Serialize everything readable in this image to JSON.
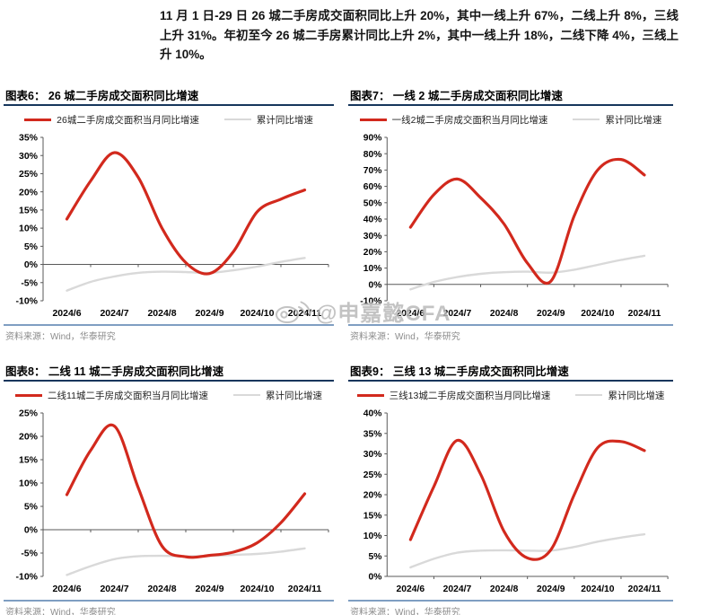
{
  "page": {
    "header_text": "11 月 1 日-29 日 26 城二手房成交面积同比上升 20%，其中一线上升 67%，二线上升 8%，三线上升 31%。年初至今 26 城二手房累计同比上升 2%，其中一线上升 18%，二线下降 4%，三线上升 10%。",
    "watermark": {
      "icon": "weibo-icon",
      "text": "@申嘉懿CFA"
    }
  },
  "colors": {
    "monthly_line": "#d2291d",
    "cumulative_line": "#d9d9d9",
    "title_underline": "#16365c",
    "source_divider": "#7f9ec2",
    "axis": "#595959",
    "tick_label": "#000000",
    "source_text": "#8c8c8c"
  },
  "chart_data": [
    {
      "id": "figure-6",
      "type": "line",
      "title": "图表6：  26 城二手房成交面积同比增速",
      "legend": [
        "26城二手房成交面积当月同比增速",
        "累计同比增速"
      ],
      "x_tick_labels": [
        "2024/6",
        "2024/7",
        "2024/8",
        "2024/9",
        "2024/10",
        "2024/11"
      ],
      "ylim": [
        -10,
        35
      ],
      "ytick_step": 5,
      "grid": false,
      "x": [
        6,
        6.5,
        7,
        7.5,
        8,
        8.5,
        9,
        9.5,
        10,
        10.5,
        11
      ],
      "series": [
        {
          "name": "26城二手房成交面积当月同比增速",
          "role": "monthly",
          "values": [
            12.5,
            23,
            30.8,
            24,
            10,
            0.5,
            -2.5,
            3.5,
            14.5,
            18,
            20.5
          ]
        },
        {
          "name": "累计同比增速",
          "role": "cumulative",
          "values": [
            -7.2,
            -4.8,
            -3.3,
            -2.3,
            -2.0,
            -2.1,
            -2.3,
            -1.6,
            -0.6,
            0.7,
            1.8
          ]
        }
      ],
      "source": "资料来源：Wind，华泰研究"
    },
    {
      "id": "figure-7",
      "type": "line",
      "title": "图表7：  一线 2 城二手房成交面积同比增速",
      "legend": [
        "一线2城二手房成交面积当月同比增速",
        "累计同比增速"
      ],
      "x_tick_labels": [
        "2024/6",
        "2024/7",
        "2024/8",
        "2024/9",
        "2024/10",
        "2024/11"
      ],
      "ylim": [
        -10,
        90
      ],
      "ytick_step": 10,
      "grid": false,
      "x": [
        6,
        6.5,
        7,
        7.5,
        8,
        8.5,
        9,
        9.5,
        10,
        10.5,
        11
      ],
      "series": [
        {
          "name": "一线2城二手房成交面积当月同比增速",
          "role": "monthly",
          "values": [
            35,
            55,
            64.5,
            53,
            37,
            13,
            2,
            42,
            70,
            76.5,
            67
          ]
        },
        {
          "name": "累计同比增速",
          "role": "cumulative",
          "values": [
            -3,
            1.5,
            4.5,
            6.5,
            7.5,
            7.8,
            7.2,
            9,
            12,
            15,
            17.5
          ]
        }
      ],
      "source": "资料来源：Wind，华泰研究"
    },
    {
      "id": "figure-8",
      "type": "line",
      "title": "图表8：  二线 11 城二手房成交面积同比增速",
      "legend": [
        "二线11城二手房成交面积当月同比增速",
        "累计同比增速"
      ],
      "x_tick_labels": [
        "2024/6",
        "2024/7",
        "2024/8",
        "2024/9",
        "2024/10",
        "2024/11"
      ],
      "ylim": [
        -10,
        25
      ],
      "ytick_step": 5,
      "grid": false,
      "x": [
        6,
        6.5,
        7,
        7.5,
        8,
        8.5,
        9,
        9.5,
        10,
        10.5,
        11
      ],
      "series": [
        {
          "name": "二线11城二手房成交面积当月同比增速",
          "role": "monthly",
          "values": [
            7.5,
            17,
            22.2,
            9,
            -3.5,
            -5.8,
            -5.5,
            -4.8,
            -2.8,
            1.5,
            7.7
          ]
        },
        {
          "name": "累计同比增速",
          "role": "cumulative",
          "values": [
            -9.7,
            -7.8,
            -6.3,
            -5.7,
            -5.6,
            -5.7,
            -5.6,
            -5.4,
            -5.2,
            -4.7,
            -4.0
          ]
        }
      ],
      "source": "资料来源：Wind，华泰研究"
    },
    {
      "id": "figure-9",
      "type": "line",
      "title": "图表9：  三线 13 城二手房成交面积同比增速",
      "legend": [
        "三线13城二手房成交面积当月同比增速",
        "累计同比增速"
      ],
      "x_tick_labels": [
        "2024/6",
        "2024/7",
        "2024/8",
        "2024/9",
        "2024/10",
        "2024/11"
      ],
      "ylim": [
        0,
        40
      ],
      "ytick_step": 5,
      "grid": false,
      "x": [
        6,
        6.5,
        7,
        7.5,
        8,
        8.5,
        9,
        9.5,
        10,
        10.5,
        11
      ],
      "series": [
        {
          "name": "三线13城二手房成交面积当月同比增速",
          "role": "monthly",
          "values": [
            9,
            22,
            33.3,
            25,
            11,
            4.5,
            6.5,
            20,
            31.5,
            33,
            30.8
          ]
        },
        {
          "name": "累计同比增速",
          "role": "cumulative",
          "values": [
            2.2,
            4.3,
            5.8,
            6.3,
            6.4,
            6.3,
            6.3,
            7.2,
            8.5,
            9.5,
            10.3
          ]
        }
      ],
      "source": "资料来源：Wind，华泰研究"
    }
  ]
}
